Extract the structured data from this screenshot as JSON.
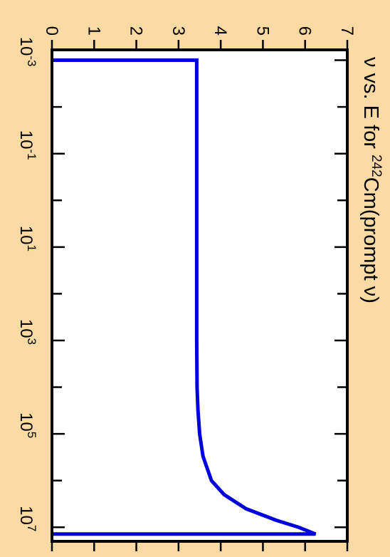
{
  "chart_data": {
    "type": "line",
    "title_parts": {
      "prefix": "ν vs. E for ",
      "isotope_mass": "242",
      "suffix": "Cm(prompt ν)"
    },
    "xlabel": "",
    "ylabel": "",
    "x_scale": "log",
    "xlim": [
      0.0006,
      20000000
    ],
    "ylim": [
      0,
      7
    ],
    "x_ticks": [
      {
        "base": "10",
        "exp": "-3",
        "value": 0.001
      },
      {
        "base": "10",
        "exp": "-1",
        "value": 0.1
      },
      {
        "base": "10",
        "exp": "1",
        "value": 10
      },
      {
        "base": "10",
        "exp": "3",
        "value": 1000
      },
      {
        "base": "10",
        "exp": "5",
        "value": 100000
      },
      {
        "base": "10",
        "exp": "7",
        "value": 10000000
      }
    ],
    "y_ticks": [
      "0",
      "1",
      "2",
      "3",
      "4",
      "5",
      "6",
      "7"
    ],
    "grid": false,
    "series": [
      {
        "color": "#0000dd",
        "x": [
          0.001,
          0.001,
          1000,
          10000,
          30000,
          100000,
          300000,
          1000000,
          2000000,
          4000000,
          7000000,
          10000000,
          14000000,
          14000000
        ],
        "y": [
          0,
          3.43,
          3.43,
          3.44,
          3.46,
          3.5,
          3.58,
          3.78,
          4.08,
          4.6,
          5.3,
          5.85,
          6.25,
          0
        ]
      }
    ]
  }
}
